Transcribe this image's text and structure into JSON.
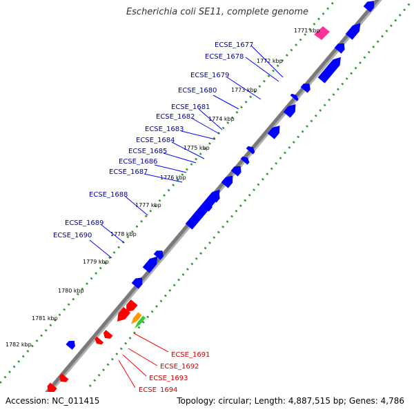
{
  "title": "Escherichia coli SE11, complete genome",
  "accession": "Accession: NC_011415",
  "topology": "Topology: circular; Length: 4,887,515 bp; Genes: 4,786",
  "colors": {
    "forward": "#0000ff",
    "reverse": "#ff0000",
    "pink": "#ff3399",
    "orange": "#ff9900",
    "green": "#33cc33",
    "backbone": "#808080",
    "dots": "#339933"
  },
  "kbp_ticks": [
    {
      "label": "1771 kbp"
    },
    {
      "label": "1772 kbp"
    },
    {
      "label": "1773 kbp"
    },
    {
      "label": "1774 kbp"
    },
    {
      "label": "1775 kbp"
    },
    {
      "label": "1776 kbp"
    },
    {
      "label": "1777 kbp"
    },
    {
      "label": "1778 kbp"
    },
    {
      "label": "1779 kbp"
    },
    {
      "label": "1780 kbp"
    },
    {
      "label": "1781 kbp"
    },
    {
      "label": "1782 kbp"
    }
  ],
  "forward_genes": [
    {
      "label": "ECSE_1677"
    },
    {
      "label": "ECSE_1678"
    },
    {
      "label": "ECSE_1679"
    },
    {
      "label": "ECSE_1680"
    },
    {
      "label": "ECSE_1681"
    },
    {
      "label": "ECSE_1682"
    },
    {
      "label": "ECSE_1683"
    },
    {
      "label": "ECSE_1684"
    },
    {
      "label": "ECSE_1685"
    },
    {
      "label": "ECSE_1686"
    },
    {
      "label": "ECSE_1687"
    },
    {
      "label": "ECSE_1688"
    },
    {
      "label": "ECSE_1689"
    },
    {
      "label": "ECSE_1690"
    }
  ],
  "reverse_genes": [
    {
      "label": "ECSE_1691"
    },
    {
      "label": "ECSE_1692"
    },
    {
      "label": "ECSE_1693"
    },
    {
      "label": "ECSE_1694"
    }
  ]
}
